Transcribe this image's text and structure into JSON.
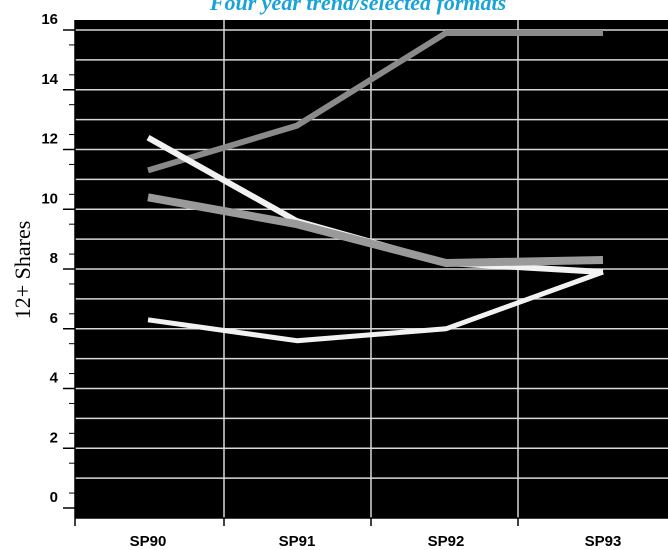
{
  "chart_data": {
    "type": "line",
    "title": "Four year trend/selected formats",
    "xlabel": "",
    "ylabel": "12+ Shares",
    "categories": [
      "SP90",
      "SP91",
      "SP92",
      "SP93"
    ],
    "yticks": [
      0,
      2,
      4,
      6,
      8,
      10,
      12,
      14,
      16
    ],
    "ylim": [
      0,
      16
    ],
    "grid": true,
    "background": "#000000",
    "series": [
      {
        "color": "#8a8a8a",
        "width": 6,
        "values": [
          11.3,
          12.8,
          15.9,
          15.9
        ]
      },
      {
        "color": "#f2f2f2",
        "width": 6,
        "values": [
          12.4,
          9.6,
          8.2,
          7.9
        ]
      },
      {
        "color": "#9a9a9a",
        "width": 8,
        "values": [
          10.4,
          9.5,
          8.2,
          8.3
        ]
      },
      {
        "color": "#f2f2f2",
        "width": 5,
        "values": [
          6.3,
          5.6,
          6.0,
          7.9
        ]
      }
    ]
  }
}
